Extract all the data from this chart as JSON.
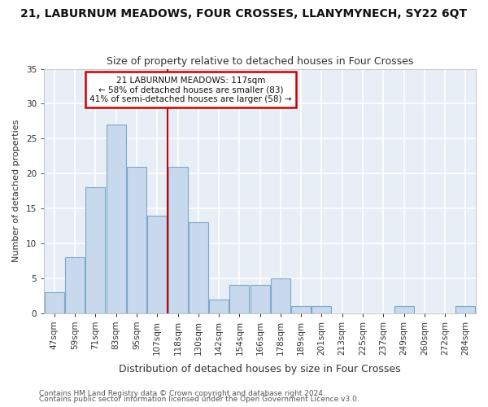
{
  "title": "21, LABURNUM MEADOWS, FOUR CROSSES, LLANYMYNECH, SY22 6QT",
  "subtitle": "Size of property relative to detached houses in Four Crosses",
  "xlabel": "Distribution of detached houses by size in Four Crosses",
  "ylabel": "Number of detached properties",
  "bar_color": "#c8d8ed",
  "bar_edge_color": "#7aaac8",
  "categories": [
    "47sqm",
    "59sqm",
    "71sqm",
    "83sqm",
    "95sqm",
    "107sqm",
    "118sqm",
    "130sqm",
    "142sqm",
    "154sqm",
    "166sqm",
    "178sqm",
    "189sqm",
    "201sqm",
    "213sqm",
    "225sqm",
    "237sqm",
    "249sqm",
    "260sqm",
    "272sqm",
    "284sqm"
  ],
  "values": [
    3,
    8,
    18,
    27,
    21,
    14,
    21,
    13,
    2,
    4,
    4,
    5,
    1,
    1,
    0,
    0,
    0,
    1,
    0,
    0,
    1
  ],
  "vline_index": 6,
  "vline_color": "#cc0000",
  "annotation_line1": "21 LABURNUM MEADOWS: 117sqm",
  "annotation_line2": "← 58% of detached houses are smaller (83)",
  "annotation_line3": "41% of semi-detached houses are larger (58) →",
  "annotation_box_color": "#ffffff",
  "annotation_box_edge": "#cc0000",
  "ylim": [
    0,
    35
  ],
  "yticks": [
    0,
    5,
    10,
    15,
    20,
    25,
    30,
    35
  ],
  "footer1": "Contains HM Land Registry data © Crown copyright and database right 2024.",
  "footer2": "Contains public sector information licensed under the Open Government Licence v3.0.",
  "plot_bg_color": "#e8eef5",
  "figure_bg_color": "#ffffff",
  "grid_color": "#ffffff",
  "title_fontsize": 10,
  "subtitle_fontsize": 9,
  "xlabel_fontsize": 9,
  "ylabel_fontsize": 8,
  "tick_fontsize": 7.5,
  "footer_fontsize": 6.5
}
